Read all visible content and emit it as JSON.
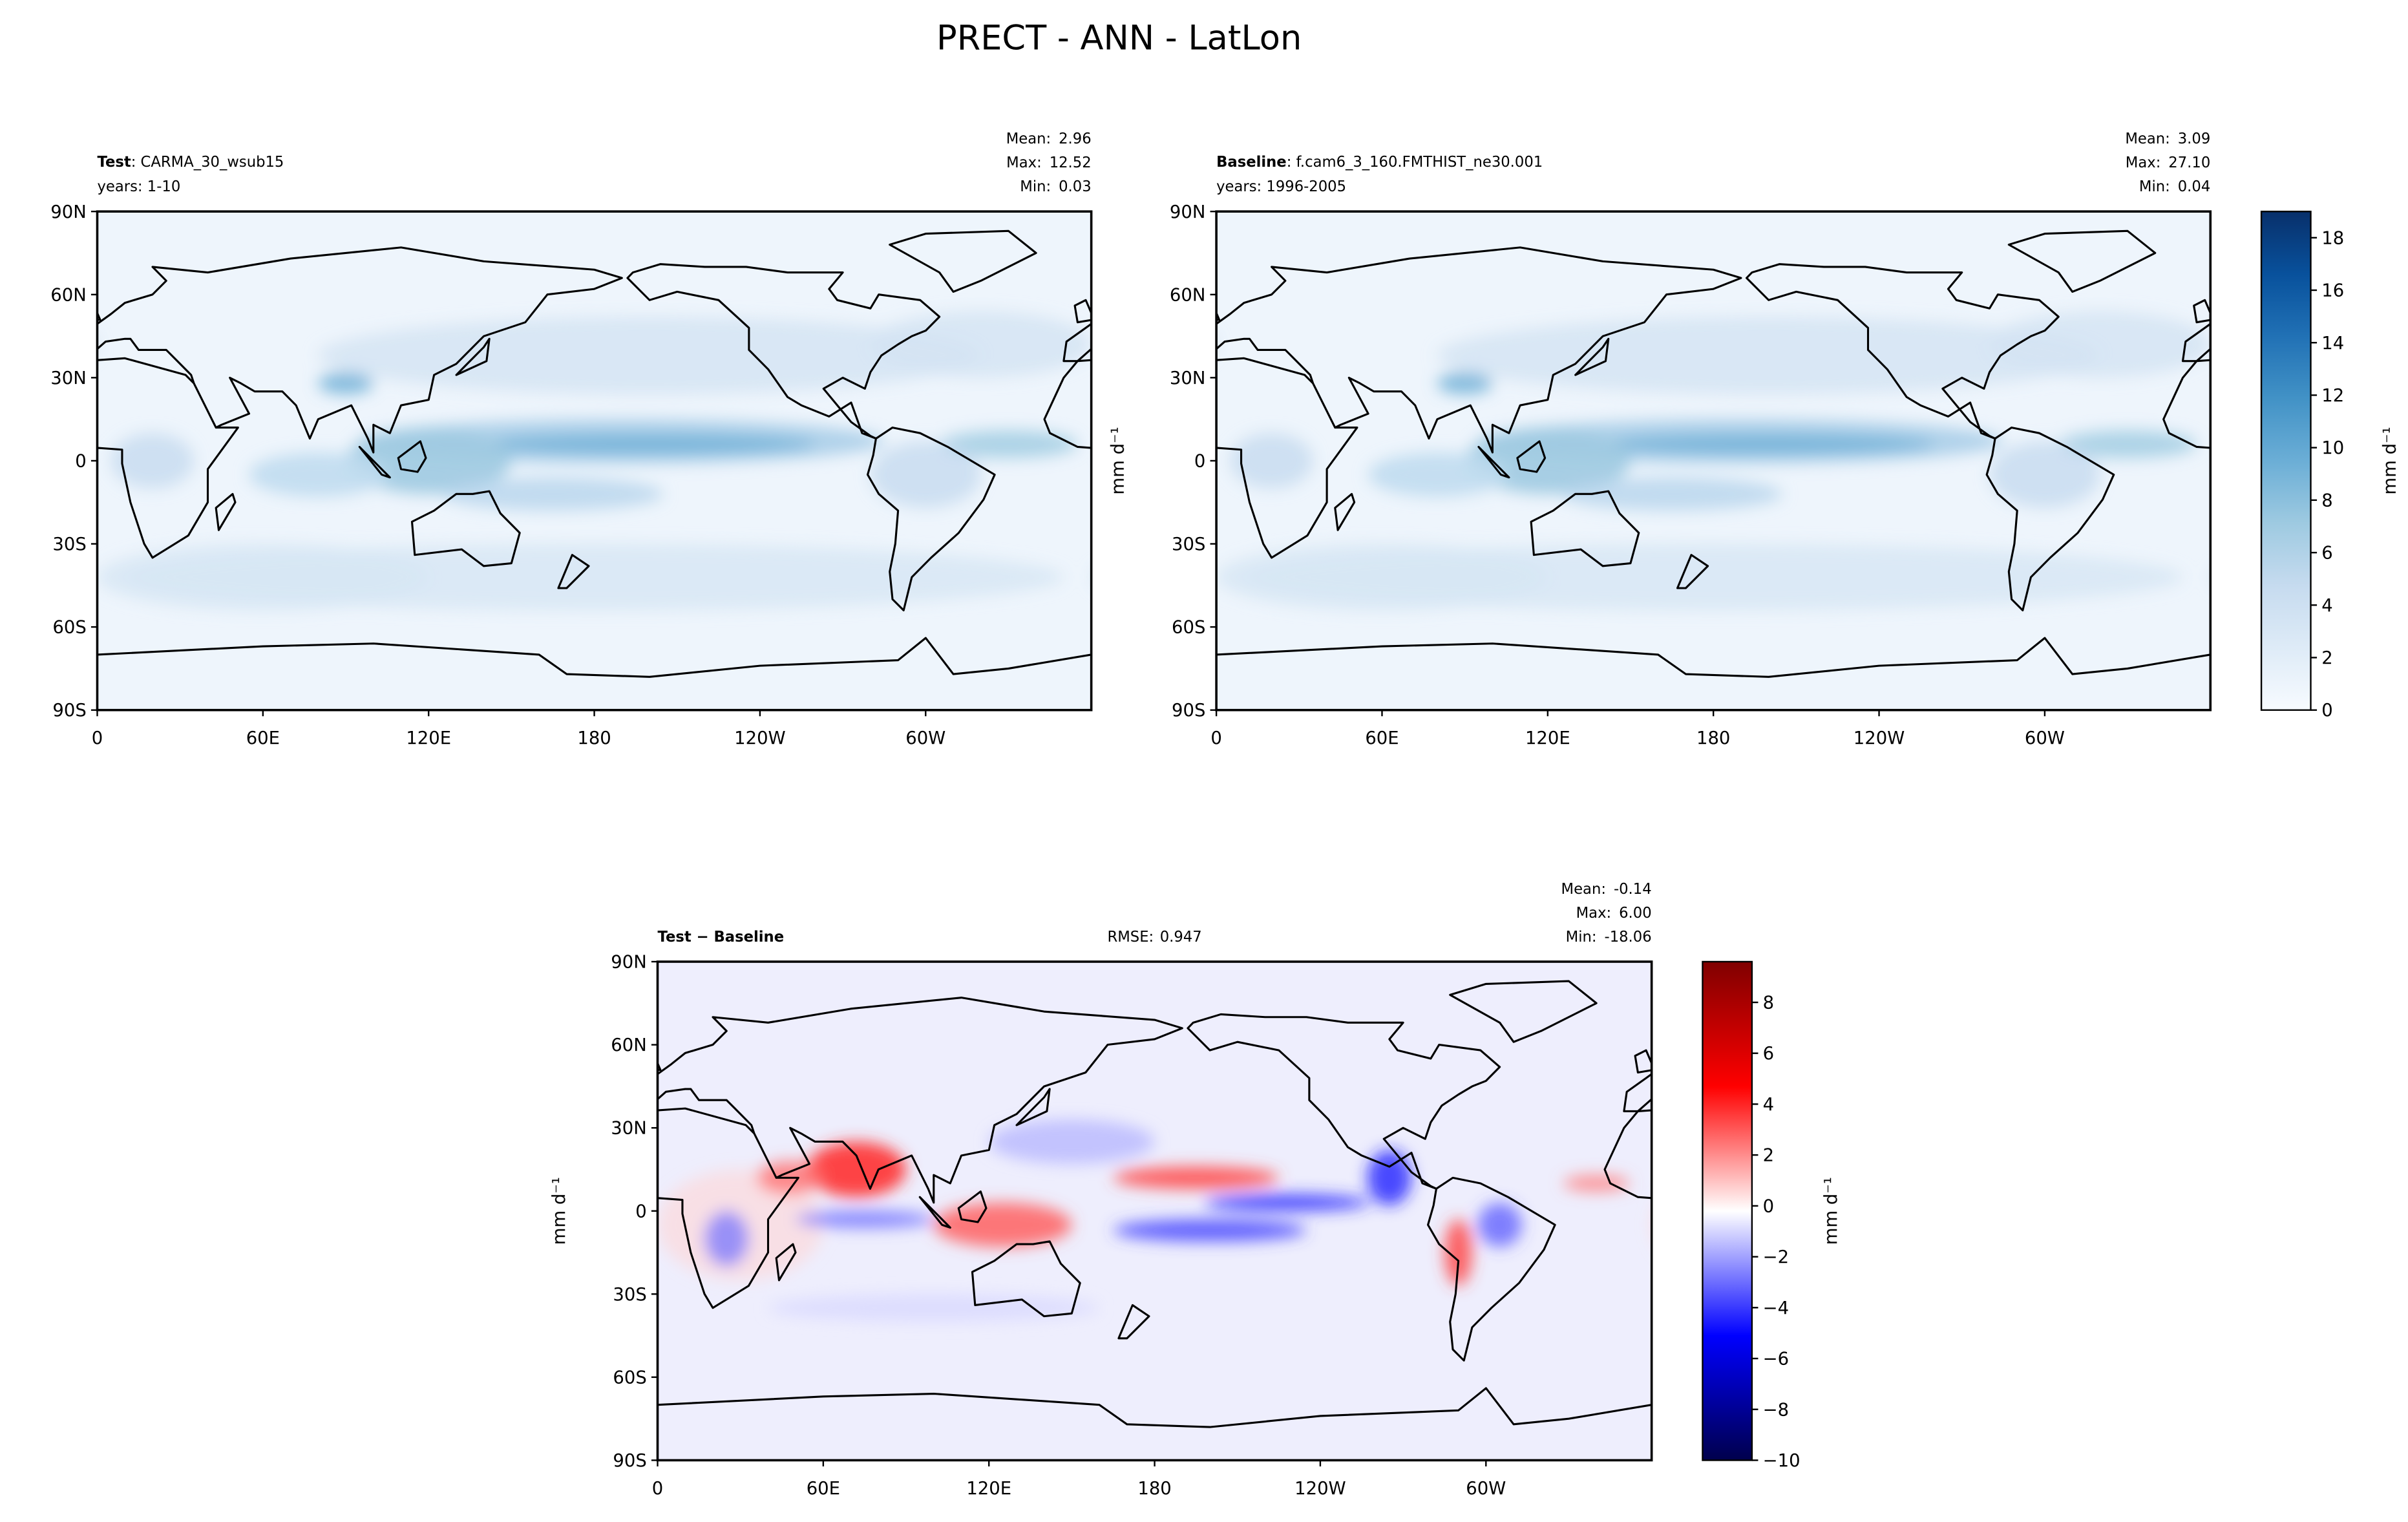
{
  "title": "PRECT - ANN - LatLon",
  "chart_data": [
    {
      "type": "contour_map",
      "title": "Test",
      "run": ": CARMA_30_wsub15",
      "years": "years: 1-10",
      "stats": {
        "names": [
          "Mean:",
          "Max:",
          "Min:"
        ],
        "values": [
          2.96,
          12.52,
          0.03
        ],
        "value_labels": [
          "2.96",
          "12.52",
          "0.03"
        ]
      },
      "xlim": [
        0,
        360
      ],
      "xticks": [
        0,
        {
          "value": 60,
          "label": "60E"
        },
        {
          "value": 120,
          "label": "120E"
        },
        180,
        {
          "value": 240,
          "label": "120W"
        },
        {
          "value": 300,
          "label": "60W"
        }
      ],
      "ylim": [
        -90,
        90
      ],
      "yticks": [
        {
          "value": -90,
          "label": "90S"
        },
        {
          "value": -60,
          "label": "60S"
        },
        {
          "value": -30,
          "label": "30S"
        },
        0,
        {
          "value": 30,
          "label": "30N"
        },
        {
          "value": 60,
          "label": "60N"
        },
        {
          "value": 90,
          "label": "90N"
        }
      ]
    },
    {
      "type": "contour_map",
      "title": "Baseline",
      "run": ": f.cam6_3_160.FMTHIST_ne30.001",
      "years": "years: 1996-2005",
      "stats": {
        "names": [
          "Mean:",
          "Max:",
          "Min:"
        ],
        "values": [
          3.09,
          27.1,
          0.04
        ],
        "value_labels": [
          "3.09",
          "27.10",
          "0.04"
        ]
      },
      "ylabel": "mm d⁻¹",
      "xlim": [
        0,
        360
      ],
      "xticks": [
        0,
        {
          "value": 60,
          "label": "60E"
        },
        {
          "value": 120,
          "label": "120E"
        },
        180,
        {
          "value": 240,
          "label": "120W"
        },
        {
          "value": 300,
          "label": "60W"
        }
      ],
      "ylim": [
        -90,
        90
      ],
      "yticks": [
        {
          "value": -90,
          "label": "90S"
        },
        {
          "value": -60,
          "label": "60S"
        },
        {
          "value": -30,
          "label": "30S"
        },
        0,
        {
          "value": 30,
          "label": "30N"
        },
        {
          "value": 60,
          "label": "60N"
        },
        {
          "value": 90,
          "label": "90N"
        }
      ],
      "colorbar": {
        "label": "mm d⁻¹",
        "lim": [
          0,
          19
        ],
        "ticks": [
          0,
          2,
          4,
          6,
          8,
          10,
          12,
          14,
          16,
          18
        ],
        "colors": [
          "#f7fbff",
          "#deebf7",
          "#c6dbef",
          "#9ecae1",
          "#6baed6",
          "#4292c6",
          "#2171b5",
          "#08519c",
          "#08306b"
        ]
      }
    },
    {
      "type": "contour_map",
      "title": "Test − Baseline",
      "rmse": {
        "name": "RMSE:",
        "value": 0.947
      },
      "stats": {
        "names": [
          "Mean:",
          "Max:",
          "Min:"
        ],
        "values": [
          -0.14,
          6.0,
          -18.06
        ],
        "value_labels": [
          "-0.14",
          "6.00",
          "-18.06"
        ]
      },
      "ylabel": "mm d⁻¹",
      "xlim": [
        0,
        360
      ],
      "xticks": [
        0,
        {
          "value": 60,
          "label": "60E"
        },
        {
          "value": 120,
          "label": "120E"
        },
        180,
        {
          "value": 240,
          "label": "120W"
        },
        {
          "value": 300,
          "label": "60W"
        }
      ],
      "ylim": [
        -90,
        90
      ],
      "yticks": [
        {
          "value": -90,
          "label": "90S"
        },
        {
          "value": -60,
          "label": "60S"
        },
        {
          "value": -30,
          "label": "30S"
        },
        0,
        {
          "value": 30,
          "label": "30N"
        },
        {
          "value": 60,
          "label": "60N"
        },
        {
          "value": 90,
          "label": "90N"
        }
      ],
      "colorbar": {
        "label": "mm d⁻¹",
        "lim": [
          -10,
          9.6
        ],
        "ticks": [
          {
            "value": -10,
            "label": "−10"
          },
          {
            "value": -8,
            "label": "−8"
          },
          {
            "value": -6,
            "label": "−6"
          },
          {
            "value": -4,
            "label": "−4"
          },
          {
            "value": -2,
            "label": "−2"
          },
          0,
          2,
          4,
          6,
          8
        ],
        "colors": [
          "#00004c",
          "#0000ff",
          "#ffffff",
          "#ff0000",
          "#800000"
        ]
      }
    }
  ]
}
